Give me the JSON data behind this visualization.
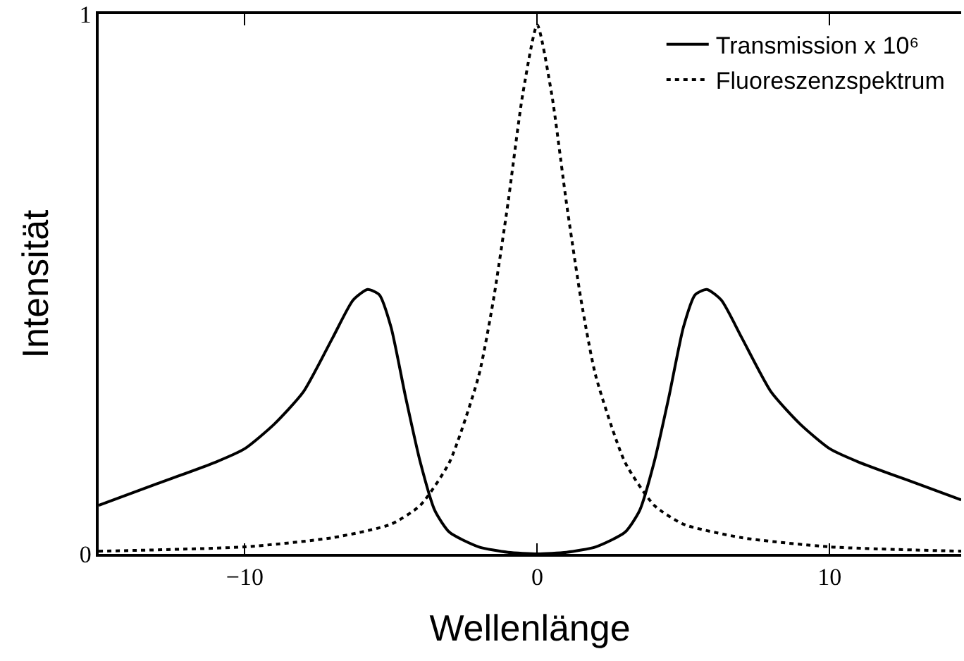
{
  "chart_data": {
    "type": "line",
    "xlabel": "Wellenlänge",
    "ylabel": "Intensität",
    "xlim": [
      -15,
      14.5
    ],
    "ylim": [
      0,
      1
    ],
    "xticks": [
      {
        "value": -10,
        "label": "−10"
      },
      0,
      10
    ],
    "yticks": [
      0,
      1
    ],
    "grid": false,
    "legend": "top right",
    "marker": "none",
    "series": [
      {
        "name": "Transmission x 10⁶",
        "color": "#000000",
        "line_style": "solid",
        "x": [
          -15,
          -13,
          -11,
          -10,
          -9,
          -8,
          -7,
          -6.3,
          -5.8,
          -5.4,
          -5,
          -4.5,
          -4,
          -3.5,
          -3,
          -2,
          -1,
          0,
          1,
          2,
          3,
          3.5,
          4,
          4.5,
          5,
          5.4,
          5.8,
          6.3,
          7,
          8,
          9,
          10,
          11,
          13,
          14.5
        ],
        "values": [
          0.09,
          0.13,
          0.17,
          0.195,
          0.24,
          0.3,
          0.4,
          0.47,
          0.49,
          0.48,
          0.42,
          0.29,
          0.17,
          0.08,
          0.04,
          0.013,
          0.003,
          0,
          0.003,
          0.013,
          0.04,
          0.08,
          0.17,
          0.29,
          0.42,
          0.48,
          0.49,
          0.47,
          0.4,
          0.3,
          0.24,
          0.195,
          0.17,
          0.13,
          0.1
        ]
      },
      {
        "name": "Fluoreszenzspektrum",
        "color": "#000000",
        "line_style": "dotted",
        "x": [
          -15,
          -10,
          -7,
          -5,
          -4,
          -3,
          -2,
          -1.5,
          -1,
          -0.5,
          0,
          0.5,
          1,
          1.5,
          2,
          3,
          4,
          5,
          7,
          10,
          14.5
        ],
        "values": [
          0.005,
          0.013,
          0.03,
          0.055,
          0.09,
          0.17,
          0.33,
          0.47,
          0.65,
          0.85,
          0.98,
          0.85,
          0.65,
          0.47,
          0.33,
          0.17,
          0.09,
          0.055,
          0.03,
          0.013,
          0.005
        ]
      }
    ]
  }
}
